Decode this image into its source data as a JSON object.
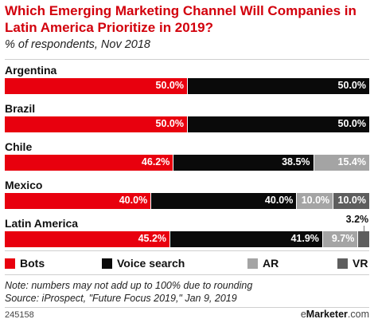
{
  "title": "Which Emerging Marketing Channel Will Companies in Latin America Prioritize in 2019?",
  "subtitle": "% of respondents, Nov 2018",
  "note": "Note: numbers may not add up to 100% due to rounding",
  "source": "Source: iProspect, \"Future Focus 2019,\" Jan 9, 2019",
  "chart_id": "245158",
  "brand": {
    "prefix": "e",
    "name": "Marketer",
    "suffix": ".com"
  },
  "colors": {
    "Bots": "#e8000e",
    "Voice search": "#0a0a0a",
    "AR": "#a4a4a4",
    "VR": "#5e5e5e"
  },
  "chart_data": {
    "type": "bar",
    "orientation": "horizontal-stacked-100",
    "title": "Which Emerging Marketing Channel Will Companies in Latin America Prioritize in 2019?",
    "subtitle": "% of respondents, Nov 2018",
    "categories": [
      "Argentina",
      "Brazil",
      "Chile",
      "Mexico",
      "Latin America"
    ],
    "series": [
      {
        "name": "Bots",
        "values": [
          50.0,
          50.0,
          46.2,
          40.0,
          45.2
        ],
        "labels": [
          "50.0%",
          "50.0%",
          "46.2%",
          "40.0%",
          "45.2%"
        ]
      },
      {
        "name": "Voice search",
        "values": [
          50.0,
          50.0,
          38.5,
          40.0,
          41.9
        ],
        "labels": [
          "50.0%",
          "50.0%",
          "38.5%",
          "40.0%",
          "41.9%"
        ]
      },
      {
        "name": "AR",
        "values": [
          0,
          0,
          15.4,
          10.0,
          9.7
        ],
        "labels": [
          "",
          "",
          "15.4%",
          "10.0%",
          "9.7%"
        ]
      },
      {
        "name": "VR",
        "values": [
          0,
          0,
          0,
          10.0,
          3.2
        ],
        "labels": [
          "",
          "",
          "",
          "10.0%",
          "3.2%"
        ]
      }
    ],
    "legend_position": "bottom",
    "grid": false
  }
}
